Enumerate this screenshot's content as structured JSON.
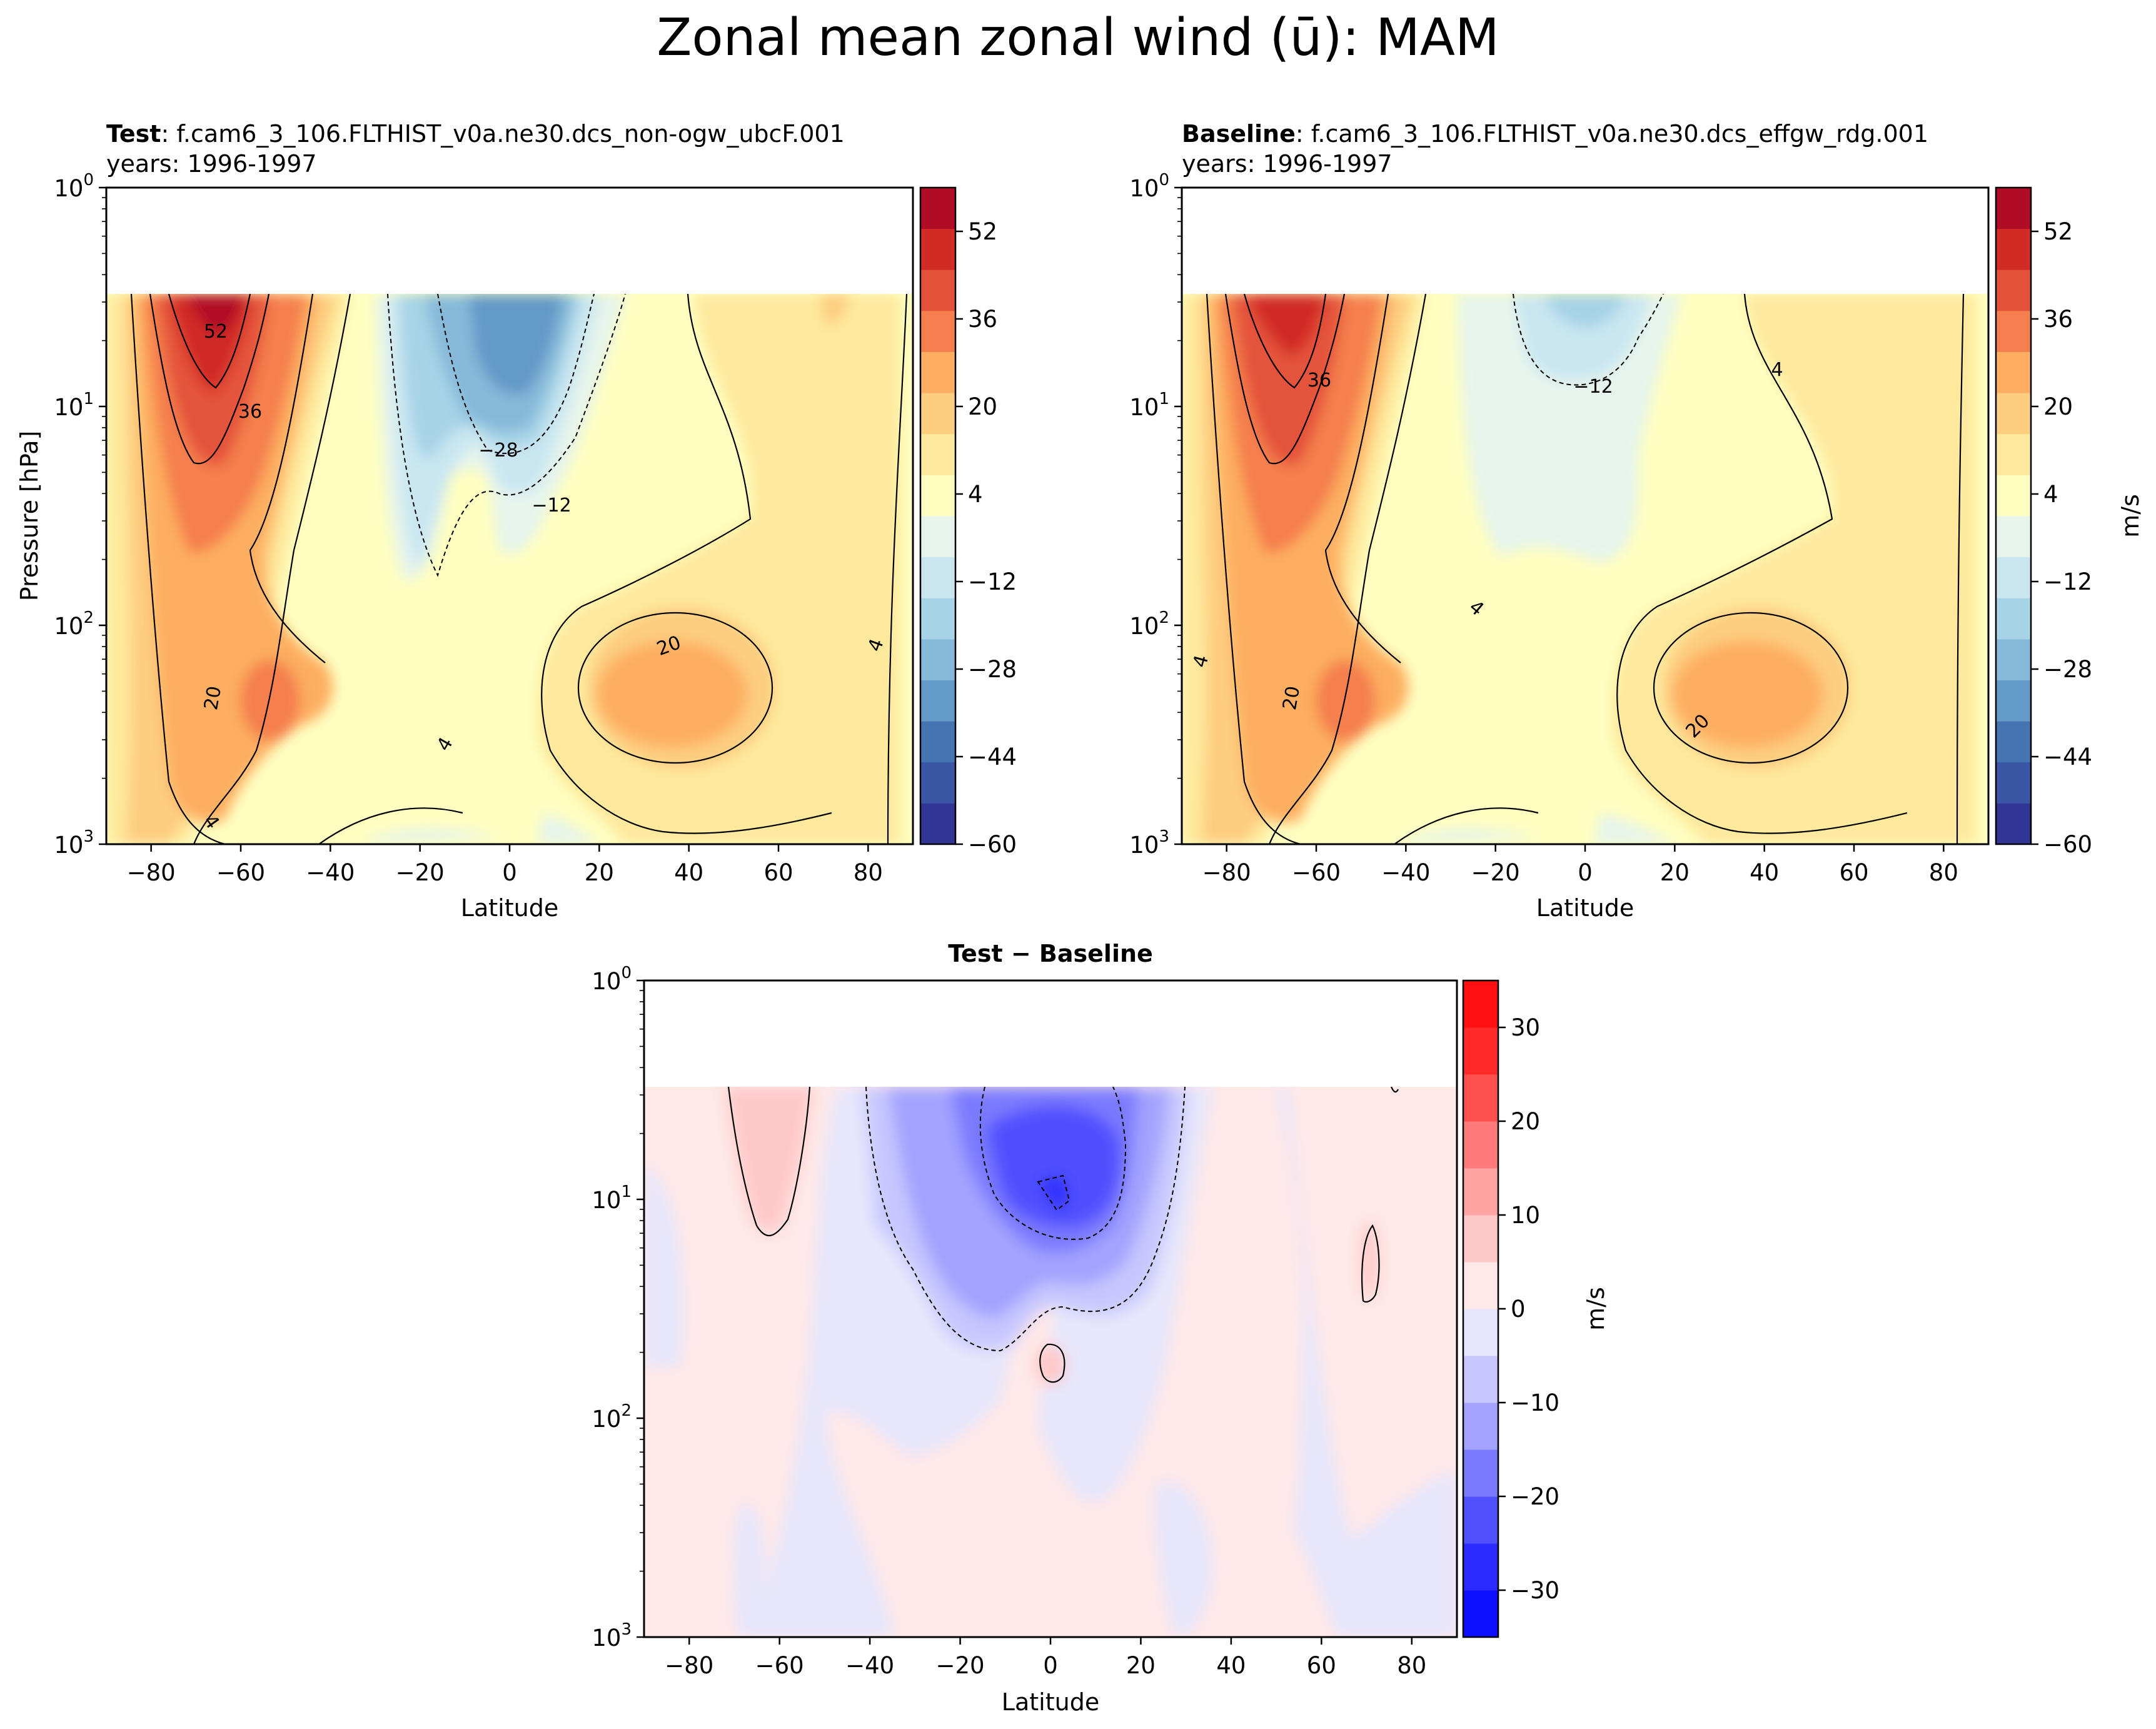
{
  "chart_data": [
    {
      "type": "contour",
      "panel": "test",
      "title_bold": "Test",
      "title_case": ": f.cam6_3_106.FLTHIST_v0a.ne30.dcs_non-ogw_ubcF.001",
      "years": "years: 1996-1997",
      "xlabel": "Latitude",
      "ylabel": "Pressure [hPa]",
      "xlim": [
        -90,
        90
      ],
      "ylim_hPa": [
        1000,
        1
      ],
      "y_scale": "log",
      "x_ticks": [
        "−80",
        "−60",
        "−40",
        "−20",
        "0",
        "20",
        "40",
        "60",
        "80"
      ],
      "x_tick_values": [
        -80,
        -60,
        -40,
        -20,
        0,
        20,
        40,
        60,
        80
      ],
      "colorbar_ticks": [
        "52",
        "36",
        "20",
        "4",
        "−12",
        "−28",
        "−44",
        "−60"
      ],
      "colorbar_tick_values": [
        52,
        36,
        20,
        4,
        -12,
        -28,
        -44,
        -60
      ],
      "contour_labels": [
        "52",
        "36",
        "−28",
        "−12",
        "20",
        "20",
        "4",
        "4",
        "4"
      ],
      "features": [
        {
          "name": "SH westerly jet max",
          "lat": -65,
          "p_hPa": 4,
          "u": 56
        },
        {
          "name": "SH tropospheric jet",
          "lat": -55,
          "p_hPa": 200,
          "u": 34
        },
        {
          "name": "Tropical easterlies",
          "lat": 0,
          "p_hPa": 4,
          "u": -36
        },
        {
          "name": "NH tropospheric jet",
          "lat": 32,
          "p_hPa": 200,
          "u": 26
        }
      ]
    },
    {
      "type": "contour",
      "panel": "baseline",
      "title_bold": "Baseline",
      "title_case": ": f.cam6_3_106.FLTHIST_v0a.ne30.dcs_effgw_rdg.001",
      "years": "years: 1996-1997",
      "xlabel": "Latitude",
      "xlim": [
        -90,
        90
      ],
      "ylim_hPa": [
        1000,
        1
      ],
      "y_scale": "log",
      "colorbar_label": "m/s",
      "x_ticks": [
        "−80",
        "−60",
        "−40",
        "−20",
        "0",
        "20",
        "40",
        "60",
        "80"
      ],
      "x_tick_values": [
        -80,
        -60,
        -40,
        -20,
        0,
        20,
        40,
        60,
        80
      ],
      "colorbar_ticks": [
        "52",
        "36",
        "20",
        "4",
        "−12",
        "−28",
        "−44",
        "−60"
      ],
      "colorbar_tick_values": [
        52,
        36,
        20,
        4,
        -12,
        -28,
        -44,
        -60
      ],
      "contour_labels": [
        "36",
        "−12",
        "4",
        "4",
        "4",
        "20",
        "20"
      ],
      "features": [
        {
          "name": "SH westerly jet max",
          "lat": -65,
          "p_hPa": 4,
          "u": 48
        },
        {
          "name": "SH tropospheric jet",
          "lat": -55,
          "p_hPa": 200,
          "u": 33
        },
        {
          "name": "Tropical easterlies",
          "lat": -5,
          "p_hPa": 4,
          "u": -14
        },
        {
          "name": "NH tropospheric jet",
          "lat": 32,
          "p_hPa": 200,
          "u": 26
        }
      ]
    },
    {
      "type": "contour",
      "panel": "difference",
      "title": "Test − Baseline",
      "xlabel": "Latitude",
      "xlim": [
        -90,
        90
      ],
      "ylim_hPa": [
        1000,
        1
      ],
      "y_scale": "log",
      "colorbar_label": "m/s",
      "x_ticks": [
        "−80",
        "−60",
        "−40",
        "−20",
        "0",
        "20",
        "40",
        "60",
        "80"
      ],
      "x_tick_values": [
        -80,
        -60,
        -40,
        -20,
        0,
        20,
        40,
        60,
        80
      ],
      "colorbar_ticks": [
        "30",
        "20",
        "10",
        "0",
        "−10",
        "−20",
        "−30"
      ],
      "colorbar_tick_values": [
        30,
        20,
        10,
        0,
        -10,
        -20,
        -30
      ],
      "features": [
        {
          "name": "Stratospheric easterly difference",
          "lat": 3,
          "p_hPa": 10,
          "diff": -22
        },
        {
          "name": "SH positive difference",
          "lat": -60,
          "p_hPa": 5,
          "diff": 7
        },
        {
          "name": "Equatorial positive difference",
          "lat": 0,
          "p_hPa": 60,
          "diff": 6
        }
      ]
    }
  ],
  "figure": {
    "suptitle": "Zonal mean zonal wind (ū): MAM",
    "y_tick_base": "10",
    "y_tick_exponents": [
      "0",
      "1",
      "2",
      "3"
    ]
  },
  "colors": {
    "wind_levels": [
      "#313695",
      "#3a55a4",
      "#4574b3",
      "#649ac8",
      "#86b9d9",
      "#a6d3e6",
      "#c9e6f1",
      "#e6f4ec",
      "#fefec0",
      "#fee99d",
      "#fdcd80",
      "#fdae61",
      "#f57f4e",
      "#e4523a",
      "#d22b26",
      "#b10c26"
    ],
    "diff_levels": [
      "#0f0fff",
      "#2b2bff",
      "#5050ff",
      "#7a7aff",
      "#a3a3ff",
      "#c7c7ff",
      "#e6e6fc",
      "#ffe8e8",
      "#ffc8c8",
      "#ffa3a3",
      "#ff7a7a",
      "#ff5050",
      "#ff2b2b",
      "#ff0f0f"
    ]
  }
}
